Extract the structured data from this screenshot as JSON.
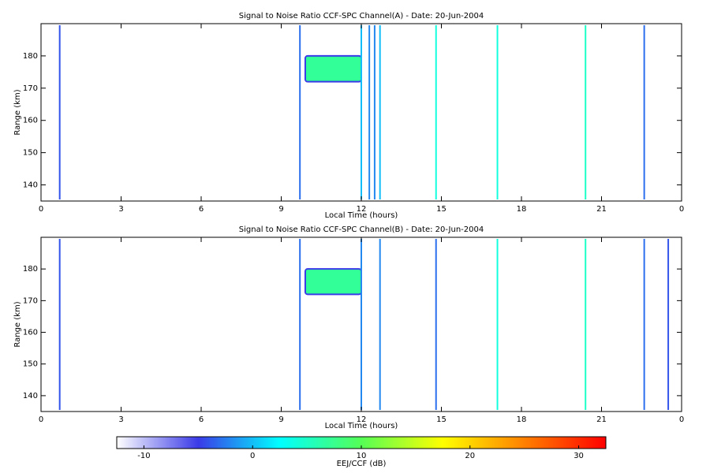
{
  "chart_data": [
    {
      "type": "heatmap",
      "title": "Signal to Noise Ratio CCF-SPC Channel(A) - Date: 20-Jun-2004",
      "xlabel": "Local Time (hours)",
      "ylabel": "Range (km)",
      "xlim": [
        0,
        24
      ],
      "ylim": [
        135,
        190
      ],
      "xticks": [
        0,
        3,
        6,
        9,
        12,
        15,
        18,
        21,
        {
          "value": 24,
          "label": "0"
        }
      ],
      "yticks": [
        140,
        150,
        160,
        170,
        180
      ],
      "echo": {
        "x": [
          9.9,
          12.0
        ],
        "y": [
          172,
          180
        ],
        "value": 7
      },
      "streaks": {
        "x": [
          0.7,
          9.7,
          12.0,
          12.3,
          12.5,
          12.7,
          14.8,
          17.1,
          20.4,
          22.6
        ],
        "values": [
          -4,
          -3,
          0,
          -2,
          -2,
          0,
          4,
          4,
          5,
          -3
        ]
      }
    },
    {
      "type": "heatmap",
      "title": "Signal to Noise Ratio CCF-SPC Channel(B) - Date: 20-Jun-2004",
      "xlabel": "Local Time (hours)",
      "ylabel": "Range (km)",
      "xlim": [
        0,
        24
      ],
      "ylim": [
        135,
        190
      ],
      "xticks": [
        0,
        3,
        6,
        9,
        12,
        15,
        18,
        21,
        {
          "value": 24,
          "label": "0"
        }
      ],
      "yticks": [
        140,
        150,
        160,
        170,
        180
      ],
      "echo": {
        "x": [
          9.9,
          12.0
        ],
        "y": [
          172,
          180
        ],
        "value": 7
      },
      "streaks": {
        "x": [
          0.7,
          9.7,
          12.0,
          12.7,
          14.8,
          17.1,
          20.4,
          22.6,
          23.5
        ],
        "values": [
          -4,
          -3,
          -2,
          -2,
          -3,
          4,
          5,
          -3,
          -4
        ]
      }
    }
  ],
  "colorbar": {
    "label": "EEJ/CCF (dB)",
    "clim": [
      -12.5,
      32.5
    ],
    "ticks": [
      -10,
      0,
      10,
      20,
      30
    ],
    "colors": [
      "#ffffff",
      "#3a3ae8",
      "#00ffff",
      "#55ff55",
      "#ffff00",
      "#ff8000",
      "#ff0000"
    ]
  }
}
